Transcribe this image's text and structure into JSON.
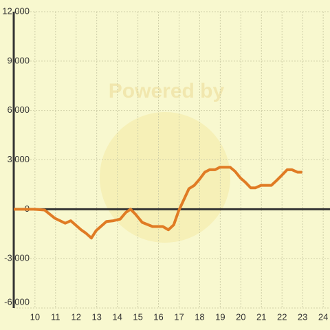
{
  "chart_data": {
    "type": "line",
    "watermark": "Powered by",
    "x": [
      8.97,
      9.97,
      10.47,
      10.97,
      11.47,
      11.74,
      12.24,
      12.47,
      12.74,
      12.97,
      13.47,
      13.81,
      14.14,
      14.41,
      14.64,
      14.88,
      15.21,
      15.71,
      16.21,
      16.48,
      16.74,
      16.98,
      17.48,
      17.74,
      17.98,
      18.25,
      18.48,
      18.75,
      18.98,
      19.48,
      19.72,
      19.98,
      20.21,
      20.48,
      20.71,
      20.98,
      21.48,
      21.74,
      21.98,
      22.25,
      22.48,
      22.75,
      22.98
    ],
    "series": [
      {
        "color": "#e07b24",
        "values": [
          0,
          0,
          -50,
          -550,
          -850,
          -700,
          -1250,
          -1450,
          -1750,
          -1300,
          -750,
          -700,
          -600,
          -200,
          0,
          -300,
          -800,
          -1050,
          -1050,
          -1250,
          -950,
          -100,
          1250,
          1450,
          1800,
          2250,
          2400,
          2400,
          2550,
          2550,
          2300,
          1900,
          1650,
          1300,
          1300,
          1450,
          1450,
          1750,
          2050,
          2400,
          2400,
          2250,
          2250
        ]
      }
    ],
    "xlim": [
      8.97,
      24.33
    ],
    "xticks": [
      10,
      11,
      12,
      13,
      14,
      15,
      16,
      17,
      18,
      19,
      20,
      21,
      22,
      23,
      24
    ],
    "ylim": [
      -6000,
      12000
    ],
    "yticks": [
      {
        "value": -6000,
        "label": "-6,000"
      },
      {
        "value": -3000,
        "label": "-3,000"
      },
      0,
      {
        "value": 3000,
        "label": "3,000"
      },
      {
        "value": 6000,
        "label": "6,000"
      },
      {
        "value": 9000,
        "label": "9,000"
      },
      {
        "value": 12000,
        "label": "12,000"
      }
    ],
    "grid": true
  }
}
